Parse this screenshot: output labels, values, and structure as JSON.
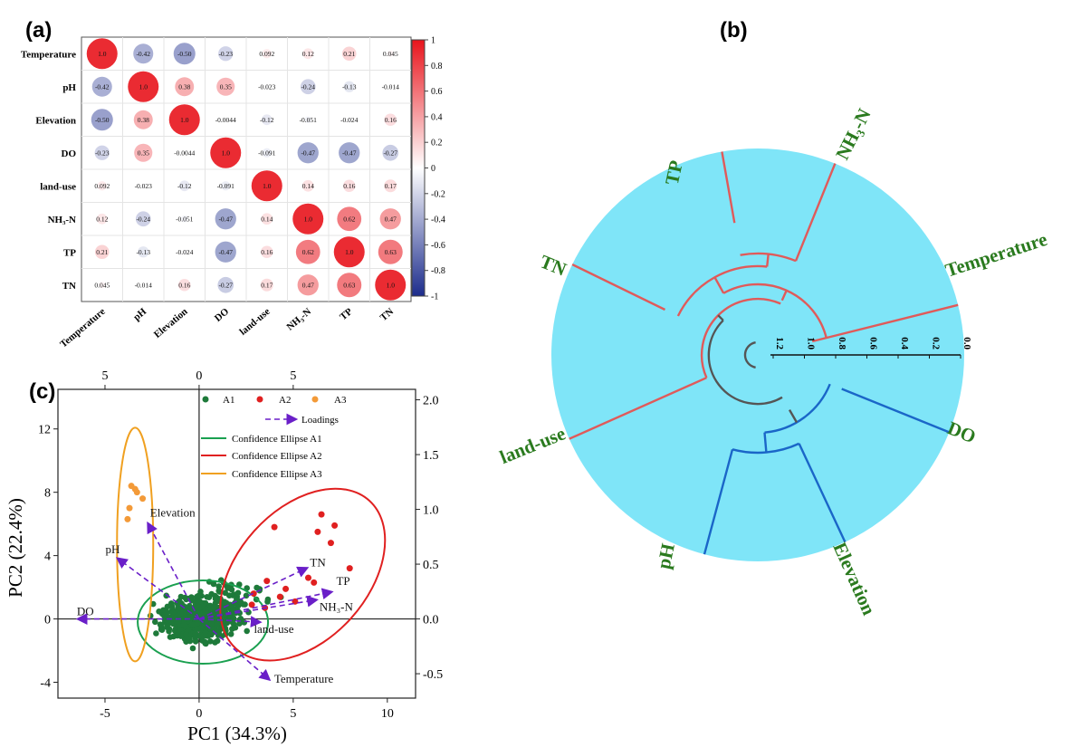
{
  "panels": {
    "a": "(a)",
    "b": "(b)",
    "c": "(c)"
  },
  "colors": {
    "positive": "#e8141c",
    "negative": "#1c2c8c",
    "cyan_bg": "#7fe5f8",
    "red_branch": "#e05a5a",
    "blue_branch": "#1a66c8",
    "gray_branch": "#555555",
    "label_green": "#2a7a1e",
    "a1": "#1e7a3a",
    "a2": "#e02020",
    "a3": "#f39a38",
    "loading": "#6a1fc8"
  },
  "chart_data": [
    {
      "type": "heatmap",
      "id": "correlation",
      "variables": [
        "Temperature",
        "pH",
        "Elevation",
        "DO",
        "land-use",
        "NH₃-N",
        "TP",
        "TN"
      ],
      "x_labels": [
        "Temperature",
        "pH",
        "Elevation",
        "DO",
        "land-use",
        "NH₃-N",
        "TP",
        "TN"
      ],
      "matrix": [
        [
          1.0,
          -0.42,
          -0.5,
          -0.23,
          0.092,
          0.12,
          0.21,
          0.045
        ],
        [
          -0.42,
          1.0,
          0.38,
          0.35,
          -0.023,
          -0.24,
          -0.13,
          -0.014
        ],
        [
          -0.5,
          0.38,
          1.0,
          -0.0044,
          -0.12,
          -0.051,
          -0.024,
          0.16
        ],
        [
          -0.23,
          0.35,
          -0.0044,
          1.0,
          -0.091,
          -0.47,
          -0.47,
          -0.27
        ],
        [
          0.092,
          -0.023,
          -0.12,
          -0.091,
          1.0,
          0.14,
          0.16,
          0.17
        ],
        [
          0.12,
          -0.24,
          -0.051,
          -0.47,
          0.14,
          1.0,
          0.62,
          0.47
        ],
        [
          0.21,
          -0.13,
          -0.024,
          -0.47,
          0.16,
          0.62,
          1.0,
          0.63
        ],
        [
          0.045,
          -0.014,
          0.16,
          -0.27,
          0.17,
          0.47,
          0.63,
          1.0
        ]
      ],
      "value_labels": [
        [
          "1.0",
          "-0.42",
          "-0.50",
          "-0.23",
          "0.092",
          "0.12",
          "0.21",
          "0.045"
        ],
        [
          "-0.42",
          "1.0",
          "0.38",
          "0.35",
          "-0.023",
          "-0.24",
          "-0.13",
          "-0.014"
        ],
        [
          "-0.50",
          "0.38",
          "1.0",
          "-0.0044",
          "-0.12",
          "-0.051",
          "-0.024",
          "0.16"
        ],
        [
          "-0.23",
          "0.35",
          "-0.0044",
          "1.0",
          "-0.091",
          "-0.47",
          "-0.47",
          "-0.27"
        ],
        [
          "0.092",
          "-0.023",
          "-0.12",
          "-0.091",
          "1.0",
          "0.14",
          "0.16",
          "0.17"
        ],
        [
          "0.12",
          "-0.24",
          "-0.051",
          "-0.47",
          "0.14",
          "1.0",
          "0.62",
          "0.47"
        ],
        [
          "0.21",
          "-0.13",
          "-0.024",
          "-0.47",
          "0.16",
          "0.62",
          "1.0",
          "0.63"
        ],
        [
          "0.045",
          "-0.014",
          "0.16",
          "-0.27",
          "0.17",
          "0.47",
          "0.63",
          "1.0"
        ]
      ],
      "colorbar": {
        "range": [
          -1,
          1
        ],
        "ticks": [
          "1",
          "0.8",
          "0.6",
          "0.4",
          "0.2",
          "0",
          "-0.2",
          "-0.4",
          "-0.6",
          "-0.8",
          "-1"
        ]
      }
    },
    {
      "type": "dendrogram",
      "id": "cluster",
      "leaves": [
        "Temperature",
        "NH₃-N",
        "TP",
        "TN",
        "land-use",
        "pH",
        "Elevation",
        "DO"
      ],
      "axis_ticks": [
        "0.0",
        "0.2",
        "0.4",
        "0.6",
        "0.8",
        "1.0",
        "1.2"
      ]
    },
    {
      "type": "scatter",
      "id": "pca",
      "xlabel": "PC1 (34.3%)",
      "ylabel": "PC2 (22.4%)",
      "xlim": [
        -7.5,
        11.5
      ],
      "ylim": [
        -5,
        14.5
      ],
      "x_ticks": [
        "-5",
        "0",
        "5",
        "10"
      ],
      "y_ticks": [
        "-4",
        "0",
        "4",
        "8",
        "12"
      ],
      "top_ticks": [
        "5",
        "0",
        "5"
      ],
      "right_ticks": [
        "2.0",
        "1.5",
        "1.0",
        "0.5",
        "0.0",
        "-0.5"
      ],
      "legend": {
        "a1": "A1",
        "a2": "A2",
        "a3": "A3",
        "loadings": "Loadings",
        "e1": "Confidence Ellipse A1",
        "e2": "Confidence Ellipse A2",
        "e3": "Confidence Ellipse A3"
      },
      "a2_points": [
        [
          4.0,
          5.8
        ],
        [
          6.5,
          6.6
        ],
        [
          7.2,
          5.9
        ],
        [
          7.0,
          4.8
        ],
        [
          6.3,
          5.5
        ],
        [
          8.0,
          3.2
        ],
        [
          5.8,
          2.6
        ],
        [
          6.1,
          2.3
        ],
        [
          3.6,
          2.4
        ],
        [
          4.6,
          1.9
        ],
        [
          2.9,
          1.6
        ],
        [
          2.8,
          0.9
        ],
        [
          3.5,
          0.7
        ],
        [
          4.3,
          1.4
        ],
        [
          5.1,
          1.1
        ]
      ],
      "a3_points": [
        [
          -3.6,
          8.4
        ],
        [
          -3.3,
          8.0
        ],
        [
          -3.4,
          8.2
        ],
        [
          -3.7,
          7.0
        ],
        [
          -3.0,
          7.6
        ],
        [
          -3.8,
          6.3
        ]
      ],
      "loadings": [
        {
          "name": "DO",
          "x": -6.4,
          "y": 0.0
        },
        {
          "name": "pH",
          "x": -4.3,
          "y": 3.8
        },
        {
          "name": "Elevation",
          "x": -2.7,
          "y": 6.0
        },
        {
          "name": "TN",
          "x": 5.7,
          "y": 3.2
        },
        {
          "name": "TP",
          "x": 7.0,
          "y": 1.7
        },
        {
          "name": "NH₃-N",
          "x": 6.2,
          "y": 1.2
        },
        {
          "name": "land-use",
          "x": 3.2,
          "y": -0.2
        },
        {
          "name": "Temperature",
          "x": 3.7,
          "y": -3.8
        }
      ],
      "loading_labels": {
        "DO": "DO",
        "pH": "pH",
        "Elevation": "Elevation",
        "TN": "TN",
        "TP": "TP",
        "NH3N": "NH₃-N",
        "land_use": "land-use",
        "Temperature": "Temperature"
      }
    }
  ]
}
